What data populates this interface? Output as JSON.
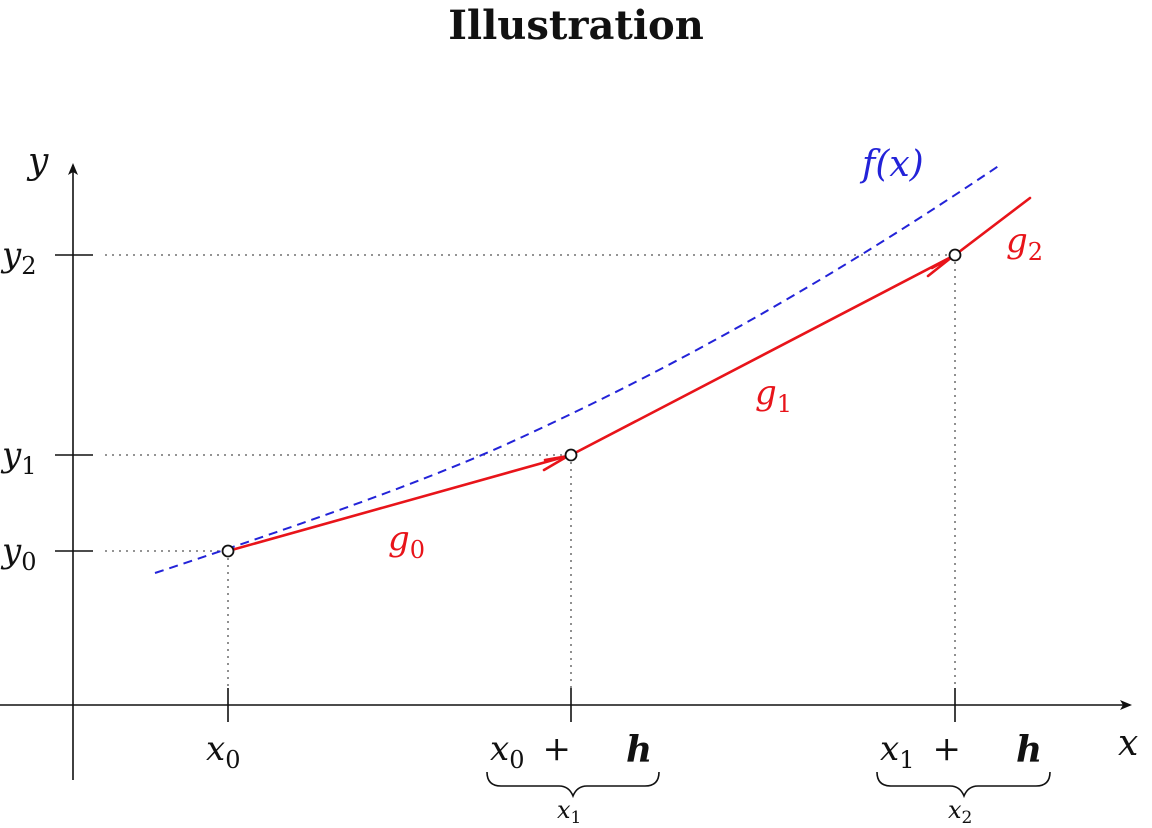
{
  "title": "Illustration",
  "axes": {
    "x_label": "x",
    "y_label": "y"
  },
  "y_ticks": [
    {
      "base": "y",
      "sub": "0"
    },
    {
      "base": "y",
      "sub": "1"
    },
    {
      "base": "y",
      "sub": "2"
    }
  ],
  "x_ticks": [
    {
      "base": "x",
      "sub": "0",
      "plus": "",
      "h": "",
      "brace": null
    },
    {
      "base": "x",
      "sub": "0",
      "plus": "+",
      "h": "h",
      "brace": {
        "base": "x",
        "sub": "1"
      }
    },
    {
      "base": "x",
      "sub": "1",
      "plus": "+",
      "h": "h",
      "brace": {
        "base": "x",
        "sub": "2"
      }
    }
  ],
  "curve_label": "f(x)",
  "segment_labels": [
    {
      "base": "g",
      "sub": "0"
    },
    {
      "base": "g",
      "sub": "1"
    },
    {
      "base": "g",
      "sub": "2"
    }
  ],
  "colors": {
    "curve": "#2323d8",
    "segments": "#e8141a",
    "axes": "#111111"
  }
}
